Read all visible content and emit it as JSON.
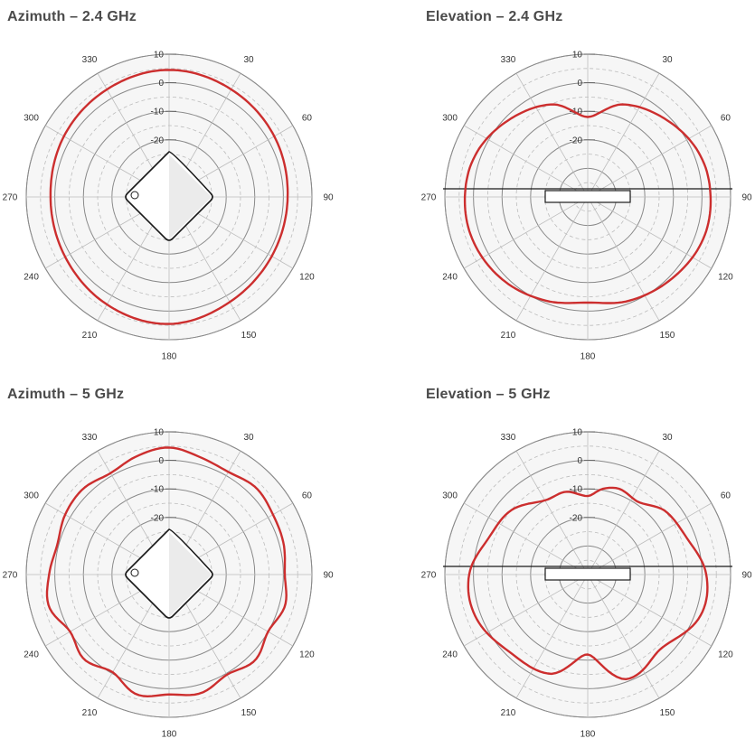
{
  "colors": {
    "pattern": "#cc2e2e",
    "face": "#f6f6f6",
    "grid_solid": "#8a8a8a",
    "grid_dashed": "#bdbdbd",
    "outline": "#555555"
  },
  "chart_data": [
    {
      "type": "polar-line",
      "title": "Azimuth – 2.4 GHz",
      "device": "access-point-top",
      "angle_ticks": [
        "0",
        "30",
        "60",
        "90",
        "120",
        "150",
        "180",
        "210",
        "240",
        "270",
        "300",
        "330"
      ],
      "angle_tick_labels": [
        "",
        "30",
        "60",
        "90",
        "120",
        "150",
        "180",
        "210",
        "240",
        "270",
        "300",
        "330"
      ],
      "radial_ticks": [
        10,
        0,
        -10,
        -20
      ],
      "rlim": [
        -40,
        10
      ],
      "theta": [
        0,
        30,
        60,
        90,
        120,
        150,
        180,
        210,
        240,
        270,
        300,
        330
      ],
      "r": [
        4.5,
        3.5,
        2.5,
        1.5,
        1.5,
        2.5,
        4.5,
        3.5,
        2.0,
        1.5,
        2.5,
        3.5
      ],
      "series": [
        {
          "values": [
            4.5,
            3.5,
            2.5,
            1.5,
            1.5,
            2.5,
            4.5,
            3.5,
            2.0,
            1.5,
            2.5,
            3.5
          ]
        }
      ]
    },
    {
      "type": "polar-line",
      "title": "Elevation – 2.4 GHz",
      "device": "access-point-side",
      "angle_ticks": [
        "0",
        "30",
        "60",
        "90",
        "120",
        "150",
        "180",
        "210",
        "240",
        "270",
        "300",
        "330"
      ],
      "angle_tick_labels": [
        "",
        "30",
        "60",
        "90",
        "120",
        "150",
        "180",
        "210",
        "240",
        "270",
        "300",
        "330"
      ],
      "radial_ticks": [
        10,
        0,
        -10,
        -20
      ],
      "rlim": [
        -40,
        10
      ],
      "theta": [
        0,
        20,
        45,
        70,
        90,
        110,
        135,
        160,
        180,
        200,
        225,
        250,
        270,
        290,
        315,
        340
      ],
      "r": [
        -12,
        -5.5,
        -1.5,
        2,
        3,
        3,
        1,
        -1,
        -3,
        -1,
        1.5,
        3,
        3,
        2,
        -1.5,
        -5.5
      ],
      "series": [
        {
          "values": [
            -12,
            -5.5,
            -1.5,
            2,
            3,
            3,
            1,
            -1,
            -3,
            -1,
            1.5,
            3,
            3,
            2,
            -1.5,
            -5.5
          ]
        }
      ]
    },
    {
      "type": "polar-line",
      "title": "Azimuth – 5 GHz",
      "device": "access-point-top",
      "angle_ticks": [
        "0",
        "30",
        "60",
        "90",
        "120",
        "150",
        "180",
        "210",
        "240",
        "270",
        "300",
        "330"
      ],
      "angle_tick_labels": [
        "",
        "30",
        "60",
        "90",
        "120",
        "150",
        "180",
        "210",
        "240",
        "270",
        "300",
        "330"
      ],
      "radial_ticks": [
        10,
        0,
        -10,
        -20
      ],
      "rlim": [
        -40,
        10
      ],
      "theta": [
        0,
        15,
        30,
        45,
        60,
        75,
        90,
        105,
        120,
        135,
        150,
        165,
        180,
        195,
        210,
        225,
        240,
        255,
        270,
        285,
        300,
        315,
        330,
        345
      ],
      "r": [
        4.5,
        2.5,
        1.5,
        3,
        2,
        1.5,
        0.5,
        2,
        0,
        2.5,
        0.5,
        3,
        2,
        3.5,
        -0.5,
        2,
        0,
        3.5,
        2,
        0.5,
        2,
        2.5,
        1,
        3
      ],
      "series": [
        {
          "values": [
            4.5,
            2.5,
            1.5,
            3,
            2,
            1.5,
            0.5,
            2,
            0,
            2.5,
            0.5,
            3,
            2,
            3.5,
            -0.5,
            2,
            0,
            3.5,
            2,
            0.5,
            2,
            2.5,
            1,
            3
          ]
        }
      ]
    },
    {
      "type": "polar-line",
      "title": "Elevation – 5 GHz",
      "device": "access-point-side",
      "angle_ticks": [
        "0",
        "30",
        "60",
        "90",
        "120",
        "150",
        "180",
        "210",
        "240",
        "270",
        "300",
        "330"
      ],
      "angle_tick_labels": [
        "",
        "30",
        "60",
        "90",
        "120",
        "150",
        "180",
        "210",
        "240",
        "270",
        "300",
        "330"
      ],
      "radial_ticks": [
        10,
        0,
        -10,
        -20
      ],
      "rlim": [
        -40,
        10
      ],
      "theta": [
        0,
        10,
        20,
        35,
        50,
        70,
        90,
        110,
        135,
        160,
        180,
        200,
        225,
        250,
        270,
        290,
        310,
        330,
        345
      ],
      "r": [
        -12.5,
        -9.5,
        -8,
        -9,
        -5,
        -3,
        1.5,
        2,
        -3.5,
        -1,
        -12,
        -3,
        -1.5,
        2,
        1.5,
        -3,
        -5,
        -10,
        -10
      ],
      "series": [
        {
          "values": [
            -12.5,
            -9.5,
            -8,
            -9,
            -5,
            -3,
            1.5,
            2,
            -3.5,
            -1,
            -12,
            -3,
            -1.5,
            2,
            1.5,
            -3,
            -5,
            -10,
            -10
          ]
        }
      ]
    }
  ]
}
